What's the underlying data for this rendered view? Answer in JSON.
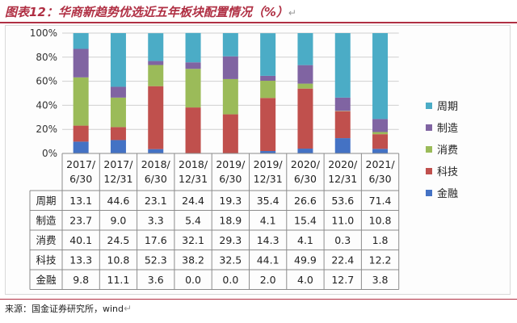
{
  "title": "图表12：华商新趋势优选近五年板块配置情况（%）",
  "source": "来源：国金证券研究所，wind",
  "chart_data": {
    "type": "bar",
    "stacked": true,
    "ylim": [
      0,
      100
    ],
    "yticks": [
      "0%",
      "20%",
      "40%",
      "60%",
      "80%",
      "100%"
    ],
    "categories": [
      [
        "2017/",
        "6/30"
      ],
      [
        "2017/",
        "12/31"
      ],
      [
        "2018/",
        "6/30"
      ],
      [
        "2018/",
        "12/31"
      ],
      [
        "2019/",
        "6/30"
      ],
      [
        "2019/",
        "12/31"
      ],
      [
        "2020/",
        "6/30"
      ],
      [
        "2020/",
        "12/31"
      ],
      [
        "2021/",
        "6/30"
      ]
    ],
    "series": [
      {
        "name": "金融",
        "color": "#4472c4",
        "values": [
          9.8,
          11.1,
          3.6,
          0.0,
          0.0,
          2.0,
          4.0,
          12.7,
          3.8
        ]
      },
      {
        "name": "科技",
        "color": "#c0504d",
        "values": [
          13.3,
          10.8,
          52.3,
          38.2,
          32.5,
          44.1,
          49.9,
          22.4,
          12.2
        ]
      },
      {
        "name": "消费",
        "color": "#9bbb59",
        "values": [
          40.1,
          24.5,
          17.6,
          32.1,
          29.3,
          14.3,
          4.1,
          0.3,
          1.8
        ]
      },
      {
        "name": "制造",
        "color": "#8064a2",
        "values": [
          23.7,
          9.0,
          3.3,
          5.4,
          18.9,
          4.1,
          15.4,
          11.0,
          10.8
        ]
      },
      {
        "name": "周期",
        "color": "#4bacc6",
        "values": [
          13.1,
          44.6,
          23.1,
          24.4,
          19.3,
          35.4,
          26.6,
          53.6,
          71.4
        ]
      }
    ],
    "legend_order": [
      "周期",
      "制造",
      "消费",
      "科技",
      "金融"
    ],
    "table_rows": [
      {
        "name": "周期",
        "cells": [
          "13.1",
          "44.6",
          "23.1",
          "24.4",
          "19.3",
          "35.4",
          "26.6",
          "53.6",
          "71.4"
        ]
      },
      {
        "name": "制造",
        "cells": [
          "23.7",
          "9.0",
          "3.3",
          "5.4",
          "18.9",
          "4.1",
          "15.4",
          "11.0",
          "10.8"
        ]
      },
      {
        "name": "消费",
        "cells": [
          "40.1",
          "24.5",
          "17.6",
          "32.1",
          "29.3",
          "14.3",
          "4.1",
          "0.3",
          "1.8"
        ]
      },
      {
        "name": "科技",
        "cells": [
          "13.3",
          "10.8",
          "52.3",
          "38.2",
          "32.5",
          "44.1",
          "49.9",
          "22.4",
          "12.2"
        ]
      },
      {
        "name": "金融",
        "cells": [
          "9.8",
          "11.1",
          "3.6",
          "0.0",
          "0.0",
          "2.0",
          "4.0",
          "12.7",
          "3.8"
        ]
      }
    ]
  }
}
